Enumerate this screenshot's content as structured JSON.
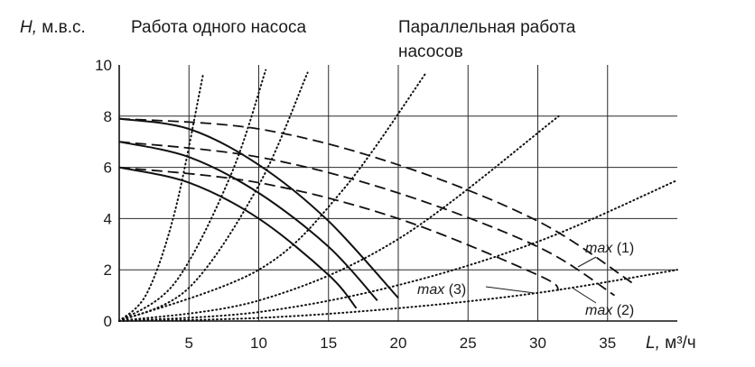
{
  "chart_data": {
    "type": "line",
    "y_axis": {
      "symbol": "H,",
      "unit": "м.в.с.",
      "range": [
        0,
        10
      ],
      "ticks": [
        "0",
        "2",
        "4",
        "6",
        "8",
        "10"
      ]
    },
    "x_axis": {
      "symbol": "L,",
      "unit": "м³/ч",
      "range": [
        0,
        40
      ],
      "ticks": [
        "5",
        "10",
        "15",
        "20",
        "25",
        "30",
        "35"
      ]
    },
    "grid": true,
    "headers": {
      "single": "Работа одного насоса",
      "parallel_line1": "Параллельная работа",
      "parallel_line2": "насосов"
    },
    "annotations": [
      {
        "text": "max",
        "suffix": "(1)"
      },
      {
        "text": "max",
        "suffix": "(3)"
      },
      {
        "text": "max",
        "suffix": "(2)"
      }
    ],
    "pump_curves_single": [
      {
        "style": "solid",
        "points": [
          [
            0,
            7.9
          ],
          [
            5,
            7.5
          ],
          [
            10,
            6.1
          ],
          [
            15,
            3.9
          ],
          [
            20,
            0.9
          ]
        ]
      },
      {
        "style": "solid",
        "points": [
          [
            0,
            7.0
          ],
          [
            5,
            6.4
          ],
          [
            10,
            5.0
          ],
          [
            15,
            2.9
          ],
          [
            18.5,
            0.8
          ]
        ]
      },
      {
        "style": "solid",
        "points": [
          [
            0,
            6.0
          ],
          [
            5,
            5.4
          ],
          [
            10,
            4.0
          ],
          [
            15,
            1.8
          ],
          [
            17,
            0.5
          ]
        ]
      }
    ],
    "pump_curves_parallel": [
      {
        "style": "dashed",
        "points": [
          [
            0,
            7.9
          ],
          [
            10,
            7.5
          ],
          [
            20,
            6.1
          ],
          [
            30,
            3.9
          ],
          [
            37,
            1.4
          ]
        ]
      },
      {
        "style": "dashed",
        "points": [
          [
            0,
            7.0
          ],
          [
            10,
            6.4
          ],
          [
            20,
            5.0
          ],
          [
            30,
            2.9
          ],
          [
            35.5,
            1.0
          ]
        ]
      },
      {
        "style": "dashed",
        "points": [
          [
            0,
            6.0
          ],
          [
            10,
            5.4
          ],
          [
            20,
            4.0
          ],
          [
            30,
            1.8
          ],
          [
            31.5,
            1.2
          ]
        ]
      }
    ],
    "system_curves": [
      {
        "style": "dotted",
        "points": [
          [
            0,
            0
          ],
          [
            2,
            1.1
          ],
          [
            4,
            4.3
          ],
          [
            6,
            9.6
          ]
        ]
      },
      {
        "style": "dotted",
        "points": [
          [
            0,
            0
          ],
          [
            4,
            1.5
          ],
          [
            8,
            5.7
          ],
          [
            10.5,
            9.8
          ]
        ]
      },
      {
        "style": "dotted",
        "points": [
          [
            0,
            0
          ],
          [
            5,
            1.3
          ],
          [
            10,
            5.3
          ],
          [
            13.5,
            9.7
          ]
        ]
      },
      {
        "style": "dotted",
        "points": [
          [
            0,
            0
          ],
          [
            10,
            2.0
          ],
          [
            16,
            5.1
          ],
          [
            22,
            9.7
          ]
        ]
      },
      {
        "style": "dotted",
        "points": [
          [
            0,
            0
          ],
          [
            10,
            0.8
          ],
          [
            20,
            3.2
          ],
          [
            31.5,
            8.0
          ]
        ]
      },
      {
        "style": "dotted",
        "points": [
          [
            0,
            0
          ],
          [
            10,
            0.35
          ],
          [
            20,
            1.4
          ],
          [
            30,
            3.1
          ],
          [
            40,
            5.5
          ]
        ]
      },
      {
        "style": "dotted",
        "points": [
          [
            0,
            0
          ],
          [
            10,
            0.12
          ],
          [
            20,
            0.5
          ],
          [
            30,
            1.1
          ],
          [
            40,
            2.0
          ]
        ]
      }
    ]
  }
}
